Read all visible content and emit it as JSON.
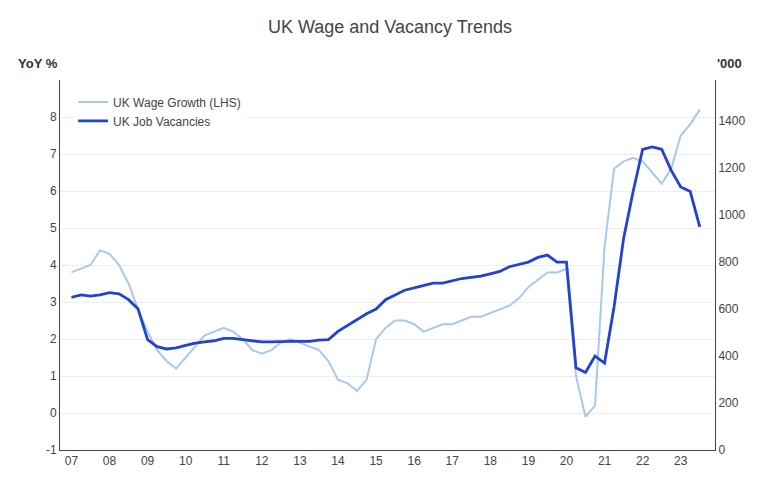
{
  "chart_data": {
    "type": "line",
    "title": "UK Wage and Vacancy Trends",
    "ylabel": "YoY %",
    "y2label": "'000",
    "x": [
      2007.0,
      2007.25,
      2007.5,
      2007.75,
      2008.0,
      2008.25,
      2008.5,
      2008.75,
      2009.0,
      2009.25,
      2009.5,
      2009.75,
      2010.0,
      2010.25,
      2010.5,
      2010.75,
      2011.0,
      2011.25,
      2011.5,
      2011.75,
      2012.0,
      2012.25,
      2012.5,
      2012.75,
      2013.0,
      2013.25,
      2013.5,
      2013.75,
      2014.0,
      2014.25,
      2014.5,
      2014.75,
      2015.0,
      2015.25,
      2015.5,
      2015.75,
      2016.0,
      2016.25,
      2016.5,
      2016.75,
      2017.0,
      2017.25,
      2017.5,
      2017.75,
      2018.0,
      2018.25,
      2018.5,
      2018.75,
      2019.0,
      2019.25,
      2019.5,
      2019.75,
      2020.0,
      2020.25,
      2020.5,
      2020.75,
      2021.0,
      2021.25,
      2021.5,
      2021.75,
      2022.0,
      2022.25,
      2022.5,
      2022.75,
      2023.0,
      2023.25,
      2023.5
    ],
    "series": [
      {
        "name": "UK Wage Growth (LHS)",
        "color": "#aac8e8",
        "values": [
          3.8,
          3.9,
          4.0,
          4.4,
          4.3,
          4.0,
          3.5,
          2.8,
          2.2,
          1.7,
          1.4,
          1.2,
          1.5,
          1.8,
          2.1,
          2.2,
          2.3,
          2.2,
          2.0,
          1.7,
          1.6,
          1.7,
          1.9,
          2.0,
          1.9,
          1.8,
          1.7,
          1.4,
          0.9,
          0.8,
          0.6,
          0.9,
          2.0,
          2.3,
          2.5,
          2.5,
          2.4,
          2.2,
          2.3,
          2.4,
          2.4,
          2.5,
          2.6,
          2.6,
          2.7,
          2.8,
          2.9,
          3.1,
          3.4,
          3.6,
          3.8,
          3.8,
          3.9,
          1.0,
          -0.1,
          0.2,
          4.5,
          6.6,
          6.8,
          6.9,
          6.8,
          6.5,
          6.2,
          6.6,
          7.5,
          7.8,
          8.2
        ]
      },
      {
        "name": "UK Job Vacancies",
        "color": "#2244cc",
        "axis": "y2",
        "values": [
          650,
          660,
          655,
          660,
          670,
          665,
          640,
          600,
          470,
          440,
          430,
          435,
          445,
          455,
          460,
          465,
          475,
          475,
          470,
          465,
          460,
          460,
          462,
          462,
          462,
          462,
          468,
          470,
          505,
          530,
          555,
          580,
          600,
          640,
          660,
          680,
          690,
          700,
          710,
          710,
          720,
          730,
          735,
          740,
          750,
          760,
          780,
          790,
          800,
          820,
          830,
          800,
          800,
          350,
          330,
          400,
          370,
          610,
          900,
          1100,
          1280,
          1290,
          1280,
          1190,
          1120,
          1100,
          950
        ]
      }
    ],
    "xlim": [
      2006.7,
      2023.9
    ],
    "xticks": [
      {
        "value": 2007,
        "label": "07"
      },
      {
        "value": 2008,
        "label": "08"
      },
      {
        "value": 2009,
        "label": "09"
      },
      {
        "value": 2010,
        "label": "10"
      },
      {
        "value": 2011,
        "label": "11"
      },
      {
        "value": 2012,
        "label": "12"
      },
      {
        "value": 2013,
        "label": "13"
      },
      {
        "value": 2014,
        "label": "14"
      },
      {
        "value": 2015,
        "label": "15"
      },
      {
        "value": 2016,
        "label": "16"
      },
      {
        "value": 2017,
        "label": "17"
      },
      {
        "value": 2018,
        "label": "18"
      },
      {
        "value": 2019,
        "label": "19"
      },
      {
        "value": 2020,
        "label": "20"
      },
      {
        "value": 2021,
        "label": "21"
      },
      {
        "value": 2022,
        "label": "22"
      },
      {
        "value": 2023,
        "label": "23"
      }
    ],
    "ylim": [
      -1,
      9
    ],
    "yticks": [
      -1,
      0,
      1,
      2,
      3,
      4,
      5,
      6,
      7,
      8
    ],
    "y2lim": [
      0,
      1575
    ],
    "y2ticks": [
      0,
      200,
      400,
      600,
      800,
      1000,
      1200,
      1400
    ],
    "grid": true,
    "legend": "upper left"
  }
}
